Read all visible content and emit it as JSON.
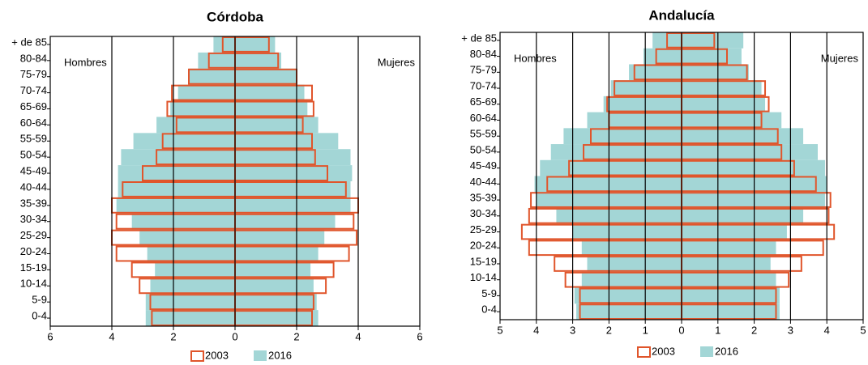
{
  "chart_data": [
    {
      "type": "pyramid",
      "title": "Córdoba",
      "left_label": "Hombres",
      "right_label": "Mujeres",
      "categories": [
        "0-4",
        "5-9",
        "10-14",
        "15-19",
        "20-24",
        "25-29",
        "30-34",
        "35-39",
        "40-44",
        "45-49",
        "50-54",
        "55-59",
        "60-64",
        "65-69",
        "70-74",
        "75-79",
        "80-84",
        "+ de 85"
      ],
      "xlim": [
        -6,
        6
      ],
      "xticks": [
        {
          "value": -6,
          "label": "6"
        },
        {
          "value": -4,
          "label": "4"
        },
        {
          "value": -2,
          "label": "2"
        },
        0,
        2,
        4,
        6
      ],
      "grid": true,
      "series": [
        {
          "name": "2016",
          "color": "#a3d6d6",
          "style": "filled",
          "hombres": [
            -2.9,
            -2.9,
            -2.75,
            -2.6,
            -2.85,
            -3.1,
            -3.35,
            -3.85,
            -3.8,
            -3.8,
            -3.7,
            -3.3,
            -2.55,
            -2.1,
            -1.85,
            -1.5,
            -1.2,
            -0.7
          ],
          "mujeres": [
            2.7,
            2.65,
            2.55,
            2.45,
            2.7,
            2.9,
            3.25,
            3.75,
            3.75,
            3.8,
            3.75,
            3.35,
            2.7,
            2.35,
            2.25,
            2.0,
            1.5,
            1.3
          ]
        },
        {
          "name": "2003",
          "color": "#e0552b",
          "style": "outline",
          "hombres": [
            -2.7,
            -2.75,
            -3.1,
            -3.35,
            -3.85,
            -4.0,
            -3.85,
            -4.0,
            -3.65,
            -3.0,
            -2.55,
            -2.35,
            -1.9,
            -2.2,
            -2.05,
            -1.5,
            -0.85,
            -0.4
          ],
          "mujeres": [
            2.5,
            2.55,
            2.95,
            3.2,
            3.7,
            3.95,
            3.85,
            4.0,
            3.6,
            3.0,
            2.6,
            2.5,
            2.2,
            2.55,
            2.5,
            2.0,
            1.4,
            1.1
          ]
        }
      ]
    },
    {
      "type": "pyramid",
      "title": "Andalucía",
      "left_label": "Hombres",
      "right_label": "Mujeres",
      "categories": [
        "0-4",
        "5-9",
        "10-14",
        "15-19",
        "20-24",
        "25-29",
        "30-34",
        "35-39",
        "40-44",
        "45-49",
        "50-54",
        "55-59",
        "60-64",
        "65-69",
        "70-74",
        "75-79",
        "80-84",
        "+ de 85"
      ],
      "xlim": [
        -5,
        5
      ],
      "xticks": [
        {
          "value": -5,
          "label": "5"
        },
        {
          "value": -4,
          "label": "4"
        },
        {
          "value": -3,
          "label": "3"
        },
        {
          "value": -2,
          "label": "2"
        },
        {
          "value": -1,
          "label": "1"
        },
        0,
        1,
        2,
        3,
        4,
        5
      ],
      "grid": true,
      "series": [
        {
          "name": "2016",
          "color": "#a3d6d6",
          "style": "filled",
          "hombres": [
            -2.9,
            -2.95,
            -2.75,
            -2.6,
            -2.75,
            -3.0,
            -3.45,
            -4.0,
            -4.05,
            -3.9,
            -3.6,
            -3.25,
            -2.6,
            -2.15,
            -1.95,
            -1.45,
            -1.05,
            -0.8
          ],
          "mujeres": [
            2.7,
            2.7,
            2.6,
            2.45,
            2.6,
            2.9,
            3.35,
            3.95,
            4.0,
            3.95,
            3.75,
            3.35,
            2.75,
            2.3,
            2.2,
            1.85,
            1.65,
            1.7
          ]
        },
        {
          "name": "2003",
          "color": "#e0552b",
          "style": "outline",
          "hombres": [
            -2.8,
            -2.8,
            -3.2,
            -3.5,
            -4.2,
            -4.4,
            -4.2,
            -4.15,
            -3.7,
            -3.1,
            -2.7,
            -2.5,
            -2.0,
            -2.05,
            -1.85,
            -1.3,
            -0.7,
            -0.4
          ],
          "mujeres": [
            2.6,
            2.6,
            2.95,
            3.3,
            3.9,
            4.2,
            4.05,
            4.1,
            3.7,
            3.1,
            2.75,
            2.65,
            2.2,
            2.4,
            2.3,
            1.8,
            1.25,
            0.9
          ]
        }
      ]
    }
  ]
}
